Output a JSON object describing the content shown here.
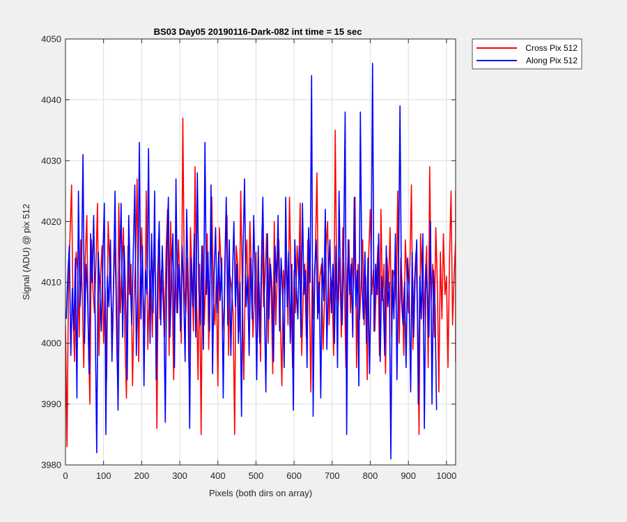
{
  "chart_data": {
    "type": "line",
    "title": "BS03 Day05 20190116-Dark-082 int time = 15 sec",
    "xlabel": "Pixels (both dirs on array)",
    "ylabel": "Signal (ADU) @ pix 512",
    "xlim": [
      0,
      1024
    ],
    "ylim": [
      3980,
      4050
    ],
    "x_ticks": [
      0,
      100,
      200,
      300,
      400,
      500,
      600,
      700,
      800,
      900,
      1000
    ],
    "y_ticks": [
      3980,
      3990,
      4000,
      4010,
      4020,
      4030,
      4040,
      4050
    ],
    "x_tick_labels": [
      "0",
      "100",
      "200",
      "300",
      "400",
      "500",
      "600",
      "700",
      "800",
      "900",
      "1000"
    ],
    "y_tick_labels": [
      "3980",
      "3990",
      "4000",
      "4010",
      "4020",
      "4030",
      "4040",
      "4050"
    ],
    "grid": true,
    "legend_position": "outside-top-right",
    "x_step": 4,
    "series": [
      {
        "name": "Cross Pix 512",
        "color": "#ff0000",
        "x_start": 0,
        "values": [
          4003,
          3983,
          4010,
          4018,
          4026,
          4004,
          3997,
          4015,
          4012,
          4001,
          4017,
          4008,
          3996,
          4014,
          4021,
          4002,
          3990,
          4017,
          4009,
          4005,
          4013,
          4023,
          3998,
          4011,
          4016,
          4000,
          4009,
          3994,
          4020,
          4013,
          4007,
          4002,
          4017,
          4010,
          3996,
          4023,
          4005,
          4012,
          4019,
          4001,
          3991,
          4016,
          4008,
          4013,
          3993,
          4007,
          4014,
          4027,
          3997,
          4011,
          4019,
          4008,
          4002,
          4025,
          3999,
          4008,
          4012,
          4001,
          4016,
          4010,
          3986,
          4017,
          4004,
          4012,
          4007,
          4001,
          4015,
          4022,
          3998,
          4020,
          4009,
          3994,
          4012,
          4005,
          4017,
          4011,
          4000,
          4037,
          4009,
          4005,
          4014,
          3996,
          4019,
          4011,
          4002,
          4029,
          4008,
          3994,
          4013,
          3985,
          4016,
          4003,
          4010,
          4018,
          3999,
          4013,
          4024,
          4008,
          4003,
          4011,
          3993,
          4019,
          4013,
          4006,
          4002,
          4016,
          4021,
          3998,
          4011,
          4009,
          4005,
          3985,
          4016,
          4013,
          4002,
          4025,
          4009,
          3994,
          4011,
          4017,
          4004,
          4020,
          4012,
          4001,
          4008,
          4015,
          4001,
          4010,
          3997,
          4019,
          4006,
          4011,
          4018,
          4000,
          4014,
          4009,
          3995,
          4020,
          4003,
          4012,
          4017,
          4004,
          3993,
          4012,
          4008,
          4015,
          4003,
          4024,
          4010,
          3996,
          4012,
          4005,
          4016,
          4011,
          4023,
          3998,
          4008,
          4013,
          4001,
          4017,
          4009,
          3992,
          4013,
          4004,
          4015,
          4028,
          4005,
          4011,
          4013,
          3999,
          4007,
          4016,
          4020,
          4003,
          4011,
          4009,
          3998,
          4035,
          4010,
          4006,
          4014,
          4001,
          4019,
          4010,
          3996,
          4012,
          4017,
          4005,
          4014,
          4009,
          4024,
          3996,
          4013,
          4004,
          4010,
          4017,
          4003,
          4011,
          3994,
          4015,
          4022,
          4008,
          4012,
          4002,
          4010,
          4016,
          3998,
          4022,
          4007,
          4013,
          3995,
          4014,
          4009,
          4019,
          4001,
          4012,
          4011,
          4006,
          4025,
          4000,
          4014,
          4009,
          3998,
          4017,
          4011,
          4005,
          4013,
          4026,
          3999,
          4010,
          4015,
          4004,
          3985,
          4018,
          4011,
          4003,
          4010,
          4016,
          3996,
          4029,
          4007,
          4013,
          4001,
          4019,
          4010,
          3992,
          4015,
          4004,
          4018,
          4008,
          4011,
          3996,
          4014,
          4025,
          4003,
          4011,
          4017,
          4006,
          3999,
          4013,
          4010,
          4016,
          3997,
          4021,
          4009,
          4004,
          4014,
          4012,
          4025,
          4001,
          4019,
          4010,
          3999
        ]
      },
      {
        "name": "Along Pix 512",
        "color": "#0000ff",
        "x_start": 2,
        "values": [
          4004,
          4011,
          4016,
          3998,
          4009,
          4002,
          4014,
          3991,
          4025,
          4006,
          4012,
          4031,
          4000,
          4013,
          4008,
          3995,
          4018,
          4010,
          4021,
          4004,
          3982,
          4015,
          4009,
          4002,
          4014,
          4023,
          3985,
          4011,
          4006,
          4017,
          3997,
          4009,
          4025,
          4004,
          3989,
          4012,
          4023,
          4001,
          4016,
          4007,
          3994,
          4021,
          4010,
          4003,
          4015,
          4026,
          3998,
          4009,
          4033,
          4004,
          4016,
          3993,
          4012,
          4008,
          4032,
          4000,
          4018,
          4005,
          4025,
          3994,
          4011,
          4020,
          4003,
          4016,
          4007,
          3987,
          4015,
          4024,
          4001,
          4011,
          4018,
          3996,
          4027,
          4005,
          4013,
          4002,
          4016,
          4009,
          3997,
          4022,
          4010,
          3986,
          4014,
          4006,
          4018,
          4001,
          4028,
          4009,
          4003,
          4016,
          3999,
          4033,
          4008,
          4015,
          4002,
          4026,
          3995,
          4011,
          4019,
          4005,
          4015,
          4007,
          4014,
          3991,
          4012,
          4024,
          4003,
          4017,
          3998,
          4010,
          4020,
          4006,
          4013,
          4000,
          4010,
          3988,
          4015,
          4027,
          4006,
          4011,
          3998,
          4014,
          4004,
          4021,
          4010,
          3994,
          4016,
          4000,
          4012,
          4024,
          4007,
          3992,
          4018,
          4004,
          4013,
          4009,
          3997,
          4016,
          4010,
          4021,
          4002,
          4014,
          4008,
          3996,
          4024,
          4006,
          4015,
          4000,
          4013,
          3989,
          4017,
          4009,
          4004,
          4016,
          4001,
          4023,
          4008,
          4012,
          3996,
          4019,
          4010,
          4044,
          3988,
          4012,
          4017,
          4004,
          4010,
          3991,
          4014,
          4007,
          4022,
          3999,
          4011,
          4017,
          4005,
          4013,
          4000,
          4016,
          3996,
          4025,
          4009,
          4003,
          4014,
          4038,
          3985,
          4017,
          4008,
          4013,
          4001,
          4024,
          4006,
          4012,
          3993,
          4038,
          4010,
          4004,
          4015,
          4000,
          4014,
          3995,
          4009,
          4046,
          4002,
          4013,
          4008,
          4018,
          3997,
          4011,
          4007,
          3998,
          4016,
          4006,
          4010,
          3981,
          4012,
          4004,
          4018,
          3994,
          4011,
          4039,
          4007,
          4003,
          4010,
          3996,
          4014,
          4009,
          3992,
          4015,
          4001,
          4012,
          4017,
          3990,
          4011,
          4004,
          4018,
          3986,
          4013,
          4008,
          4001,
          4020,
          3990,
          4012,
          4006,
          3989
        ]
      }
    ]
  }
}
